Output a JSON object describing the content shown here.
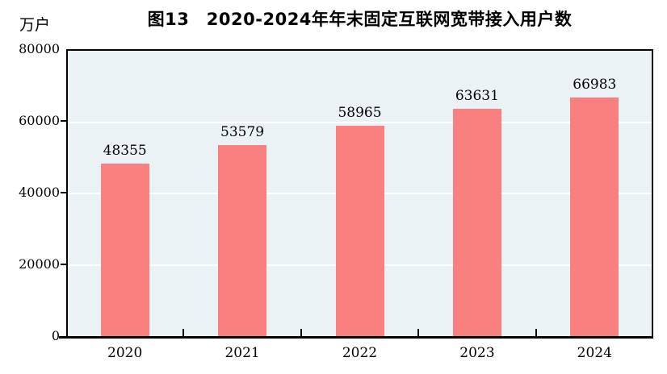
{
  "page": {
    "background": "#ffffff"
  },
  "chart_data": {
    "type": "bar",
    "title": "图13　2020-2024年年末固定互联网宽带接入用户数",
    "unit_label": "万户",
    "categories": [
      "2020",
      "2021",
      "2022",
      "2023",
      "2024"
    ],
    "values": [
      48355,
      53579,
      58965,
      63631,
      66983
    ],
    "value_labels": [
      "48355",
      "53579",
      "58965",
      "63631",
      "66983"
    ],
    "xlabel": "",
    "ylabel": "万户",
    "ylim": [
      0,
      80000
    ],
    "yticks": [
      0,
      20000,
      40000,
      60000,
      80000
    ],
    "ytick_labels": [
      "0",
      "20000",
      "40000",
      "60000",
      "80000"
    ],
    "grid": "horizontal white gridlines at 20000/40000/60000",
    "legend": "none",
    "colors": {
      "bar_fill": "#fa7f7f",
      "plot_background": "#ebf2f6",
      "gridline": "#ffffff",
      "axis": "#000000",
      "text": "#000000"
    }
  }
}
